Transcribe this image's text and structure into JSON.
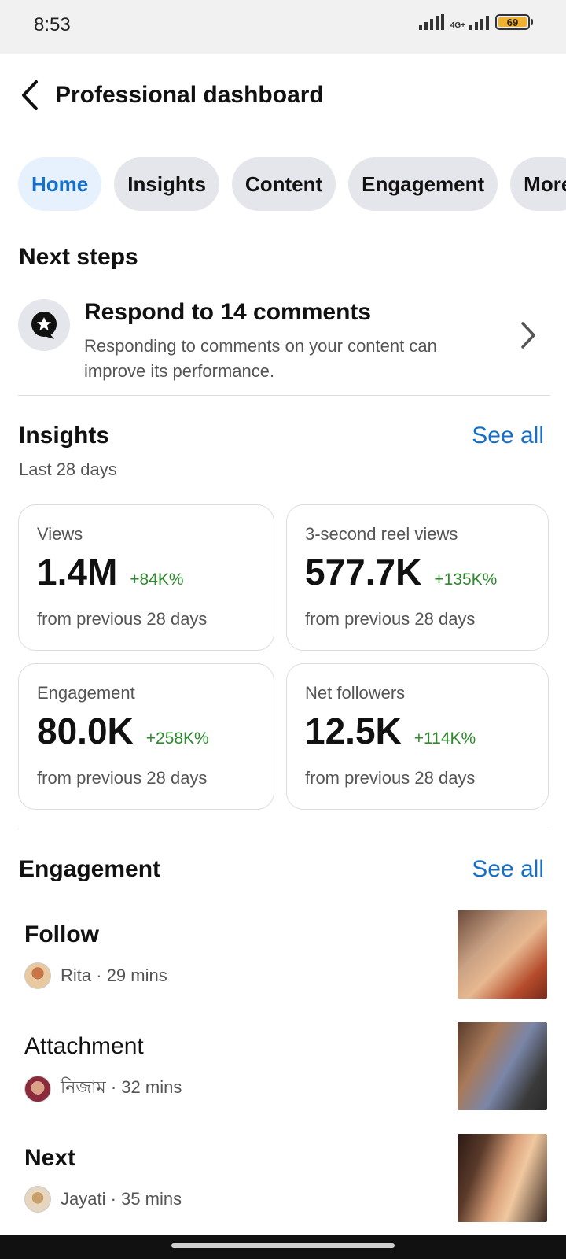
{
  "status_bar": {
    "time": "8:53",
    "network": "4G+",
    "battery": "69",
    "battery_color": "#f2b22d"
  },
  "header": {
    "back_icon": "chevron-left-icon",
    "title": "Professional dashboard"
  },
  "tabs": [
    {
      "label": "Home",
      "active": true
    },
    {
      "label": "Insights",
      "active": false
    },
    {
      "label": "Content",
      "active": false
    },
    {
      "label": "Engagement",
      "active": false
    },
    {
      "label": "More",
      "active": false
    }
  ],
  "next_steps": {
    "title": "Next steps",
    "item": {
      "icon": "comment-star-icon",
      "title": "Respond to 14 comments",
      "description": "Responding to comments on your content can improve its performance."
    }
  },
  "insights": {
    "title": "Insights",
    "see_all": "See all",
    "period": "Last 28 days",
    "cards": [
      {
        "label": "Views",
        "value": "1.4M",
        "delta": "+84K%",
        "foot": "from previous 28 days"
      },
      {
        "label": "3-second reel views",
        "value": "577.7K",
        "delta": "+135K%",
        "foot": "from previous 28 days"
      },
      {
        "label": "Engagement",
        "value": "80.0K",
        "delta": "+258K%",
        "foot": "from previous 28 days"
      },
      {
        "label": "Net followers",
        "value": "12.5K",
        "delta": "+114K%",
        "foot": "from previous 28 days"
      }
    ],
    "delta_color": "#2d8a2d"
  },
  "engagement": {
    "title": "Engagement",
    "see_all": "See all",
    "items": [
      {
        "title": "Follow",
        "user": "Rita",
        "time": "29 mins",
        "bold": true
      },
      {
        "title": "Attachment",
        "user": "নিজাম",
        "time": "32 mins",
        "bold": false
      },
      {
        "title": "Next",
        "user": "Jayati",
        "time": "35 mins",
        "bold": true
      }
    ]
  },
  "accent_color": "#1670c7"
}
